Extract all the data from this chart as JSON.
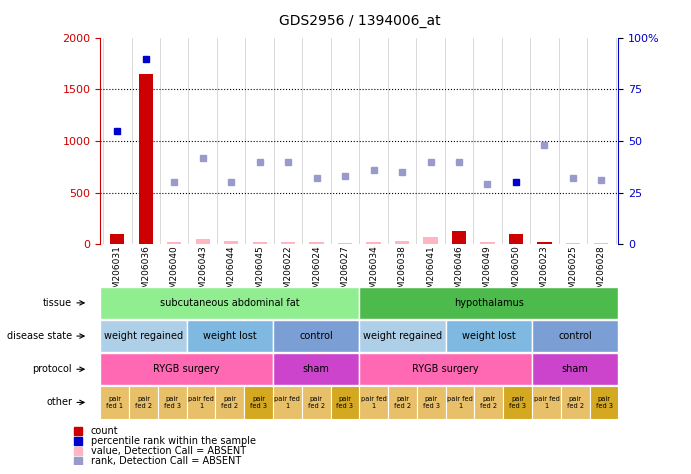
{
  "title": "GDS2956 / 1394006_at",
  "samples": [
    "GSM206031",
    "GSM206036",
    "GSM206040",
    "GSM206043",
    "GSM206044",
    "GSM206045",
    "GSM206022",
    "GSM206024",
    "GSM206027",
    "GSM206034",
    "GSM206038",
    "GSM206041",
    "GSM206046",
    "GSM206049",
    "GSM206050",
    "GSM206023",
    "GSM206025",
    "GSM206028"
  ],
  "count_values": [
    100,
    1650,
    20,
    50,
    30,
    25,
    20,
    20,
    15,
    20,
    30,
    65,
    130,
    20,
    100,
    20,
    10,
    15
  ],
  "count_absent": [
    false,
    false,
    true,
    true,
    true,
    true,
    true,
    true,
    true,
    true,
    true,
    true,
    false,
    true,
    false,
    false,
    true,
    true
  ],
  "percentile_values": [
    55,
    90,
    30,
    42,
    30,
    40,
    40,
    32,
    33,
    36,
    35,
    40,
    40,
    29,
    30,
    48,
    32,
    31
  ],
  "percentile_absent": [
    false,
    false,
    true,
    true,
    true,
    true,
    true,
    true,
    true,
    true,
    true,
    true,
    true,
    true,
    false,
    true,
    true,
    true
  ],
  "ylim": [
    0,
    2000
  ],
  "y2lim": [
    0,
    100
  ],
  "yticks": [
    0,
    500,
    1000,
    1500,
    2000
  ],
  "y2ticks": [
    0,
    25,
    50,
    75,
    100
  ],
  "tissue_groups": [
    {
      "label": "subcutaneous abdominal fat",
      "start": 0,
      "end": 8,
      "color": "#90EE90"
    },
    {
      "label": "hypothalamus",
      "start": 9,
      "end": 17,
      "color": "#4CBB4C"
    }
  ],
  "disease_groups": [
    {
      "label": "weight regained",
      "start": 0,
      "end": 2,
      "color": "#AECFE8"
    },
    {
      "label": "weight lost",
      "start": 3,
      "end": 5,
      "color": "#7FB8E0"
    },
    {
      "label": "control",
      "start": 6,
      "end": 8,
      "color": "#7B9FD4"
    },
    {
      "label": "weight regained",
      "start": 9,
      "end": 11,
      "color": "#AECFE8"
    },
    {
      "label": "weight lost",
      "start": 12,
      "end": 14,
      "color": "#7FB8E0"
    },
    {
      "label": "control",
      "start": 15,
      "end": 17,
      "color": "#7B9FD4"
    }
  ],
  "protocol_groups": [
    {
      "label": "RYGB surgery",
      "start": 0,
      "end": 5,
      "color": "#FF69B4"
    },
    {
      "label": "sham",
      "start": 6,
      "end": 8,
      "color": "#CC44CC"
    },
    {
      "label": "RYGB surgery",
      "start": 9,
      "end": 14,
      "color": "#FF69B4"
    },
    {
      "label": "sham",
      "start": 15,
      "end": 17,
      "color": "#CC44CC"
    }
  ],
  "other_labels": [
    "pair\nfed 1",
    "pair\nfed 2",
    "pair\nfed 3",
    "pair fed\n1",
    "pair\nfed 2",
    "pair\nfed 3",
    "pair fed\n1",
    "pair\nfed 2",
    "pair\nfed 3",
    "pair fed\n1",
    "pair\nfed 2",
    "pair\nfed 3",
    "pair fed\n1",
    "pair\nfed 2",
    "pair\nfed 3",
    "pair fed\n1",
    "pair\nfed 2",
    "pair\nfed 3"
  ],
  "other_colors": [
    "#E8C06A",
    "#E8C06A",
    "#E8C06A",
    "#E8C06A",
    "#E8C06A",
    "#D4A820",
    "#E8C06A",
    "#E8C06A",
    "#D4A820",
    "#E8C06A",
    "#E8C06A",
    "#E8C06A",
    "#E8C06A",
    "#E8C06A",
    "#D4A820",
    "#E8C06A",
    "#E8C06A",
    "#D4A820"
  ],
  "color_count_present": "#CC0000",
  "color_count_absent": "#FFB6C1",
  "color_percentile_present": "#0000CC",
  "color_percentile_absent": "#9999CC",
  "legend_items": [
    {
      "label": "count",
      "color": "#CC0000",
      "shape": "square"
    },
    {
      "label": "percentile rank within the sample",
      "color": "#0000CC",
      "shape": "square"
    },
    {
      "label": "value, Detection Call = ABSENT",
      "color": "#FFB6C1",
      "shape": "square"
    },
    {
      "label": "rank, Detection Call = ABSENT",
      "color": "#9999CC",
      "shape": "square"
    }
  ],
  "row_labels": [
    "tissue",
    "disease state",
    "protocol",
    "other"
  ],
  "ytick_color": "#CC0000",
  "y2tick_color": "#0000CC"
}
